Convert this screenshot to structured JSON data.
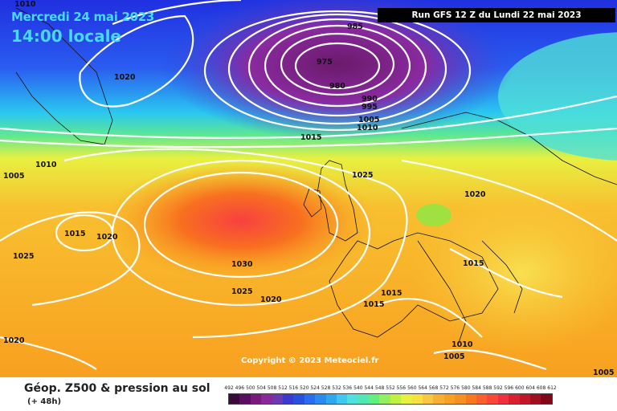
{
  "header": {
    "date_label": "Mercredi 24 mai 2023",
    "hour_label": "14:00 locale",
    "run_label": "Run GFS 12 Z du Lundi 22 mai 2023"
  },
  "map": {
    "copyright": "Copyright © 2023 Meteociel.fr",
    "isobars": [
      {
        "label": "1010"
      },
      {
        "label": "1020"
      },
      {
        "label": "985"
      },
      {
        "label": "975"
      },
      {
        "label": "980"
      },
      {
        "label": "990"
      },
      {
        "label": "995"
      },
      {
        "label": "1005"
      },
      {
        "label": "1010"
      },
      {
        "label": "1015"
      },
      {
        "label": "1010"
      },
      {
        "label": "1005"
      },
      {
        "label": "1025"
      },
      {
        "label": "1020"
      },
      {
        "label": "1015"
      },
      {
        "label": "1020"
      },
      {
        "label": "1025"
      },
      {
        "label": "1030"
      },
      {
        "label": "1025"
      },
      {
        "label": "1020"
      },
      {
        "label": "1015"
      },
      {
        "label": "1015"
      },
      {
        "label": "1015"
      },
      {
        "label": "1010"
      },
      {
        "label": "1005"
      },
      {
        "label": "1020"
      },
      {
        "label": "1005"
      }
    ]
  },
  "footer": {
    "title": "Géop. Z500 & pression au sol",
    "subtitle": "(+ 48h)"
  },
  "legend": {
    "ticks": [
      "492",
      "496",
      "500",
      "504",
      "508",
      "512",
      "516",
      "520",
      "524",
      "528",
      "532",
      "536",
      "540",
      "544",
      "548",
      "552",
      "556",
      "560",
      "564",
      "568",
      "572",
      "576",
      "580",
      "584",
      "588",
      "592",
      "596",
      "600",
      "604",
      "608",
      "612"
    ],
    "colors": [
      "#3a0a3a",
      "#5a1060",
      "#7a1a7a",
      "#8a2a9a",
      "#6a3ab0",
      "#3a3ad0",
      "#2a50e0",
      "#2a6cf0",
      "#2a8af0",
      "#30a8f0",
      "#40c8f0",
      "#50e0e0",
      "#50e8b0",
      "#60f080",
      "#90f060",
      "#c0f040",
      "#e8f040",
      "#f8e040",
      "#f8c840",
      "#f8b030",
      "#f8a020",
      "#f89020",
      "#f87820",
      "#f86030",
      "#f84838",
      "#f03040",
      "#d82030",
      "#c01828",
      "#a01020",
      "#800818"
    ]
  }
}
